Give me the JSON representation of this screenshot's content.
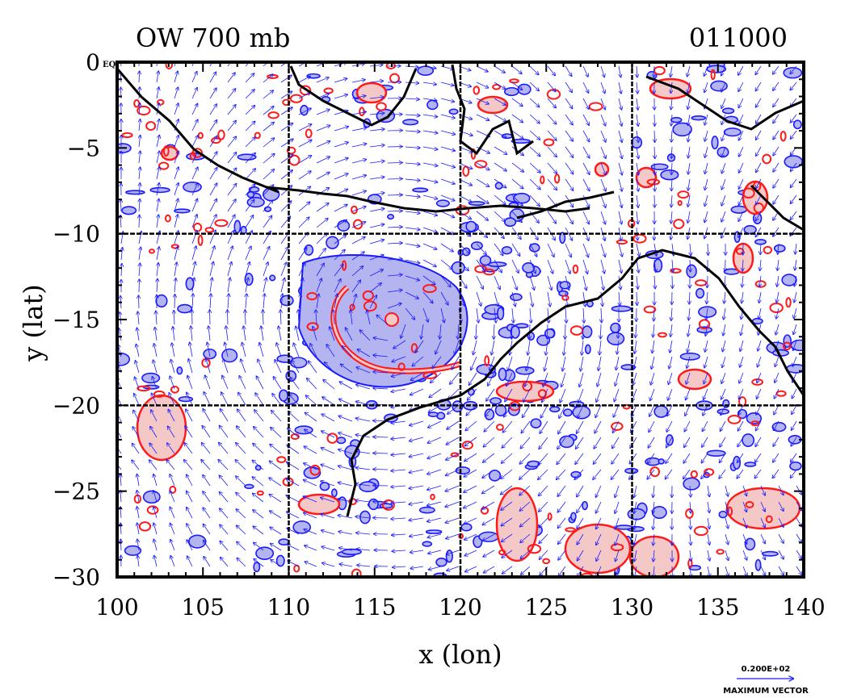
{
  "chart_data": {
    "type": "contour",
    "title_left": "OW 700 mb",
    "title_right": "011000",
    "xlabel": "x (lon)",
    "ylabel": "y (lat)",
    "xlim": [
      100,
      140
    ],
    "ylim": [
      -30,
      0
    ],
    "xticks": [
      100,
      105,
      110,
      115,
      120,
      125,
      130,
      135,
      140
    ],
    "yticks": [
      0,
      -5,
      -10,
      -15,
      -20,
      -25,
      -30
    ],
    "xtick_labels": [
      "100",
      "105",
      "110",
      "115",
      "120",
      "125",
      "130",
      "135",
      "140"
    ],
    "ytick_labels": [
      "0",
      "−5",
      "−10",
      "−15",
      "−20",
      "−25",
      "−30"
    ],
    "ytick_suffix_top": "EQ",
    "grid_x": [
      110,
      120,
      130
    ],
    "grid_y": [
      -10,
      -20
    ],
    "grid": true,
    "colors": {
      "negative_contour": "#1a1aff",
      "negative_fill": "#b4b4f0",
      "positive_contour": "#ff1a1a",
      "positive_fill": "#f5c8c8",
      "coast": "#000000",
      "vector": "#1a1aff"
    },
    "cyclone_center": {
      "lon": 116,
      "lat": -15
    },
    "legend": {
      "vector_scale": "0.200E+02",
      "vector_label": "MAXIMUM VECTOR"
    }
  }
}
